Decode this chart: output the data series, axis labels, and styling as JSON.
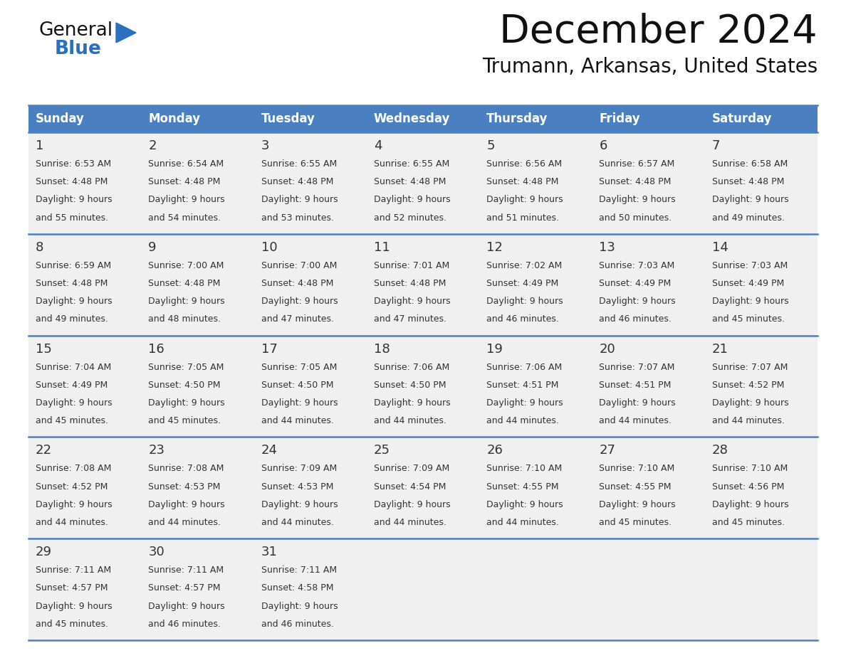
{
  "title": "December 2024",
  "subtitle": "Trumann, Arkansas, United States",
  "days_of_week": [
    "Sunday",
    "Monday",
    "Tuesday",
    "Wednesday",
    "Thursday",
    "Friday",
    "Saturday"
  ],
  "header_bg": "#4a7fc1",
  "header_text": "#FFFFFF",
  "row_bg": "#f0f0f0",
  "row_bg_last": "#f8f8f8",
  "day_num_color": "#333333",
  "text_color": "#333333",
  "line_color": "#4a7fc1",
  "title_color": "#111111",
  "subtitle_color": "#111111",
  "logo_general_color": "#111111",
  "logo_blue_color": "#2a6fc0",
  "weeks": [
    [
      {
        "day": 1,
        "sunrise": "6:53 AM",
        "sunset": "4:48 PM",
        "daylight_hours": 9,
        "daylight_minutes": 55
      },
      {
        "day": 2,
        "sunrise": "6:54 AM",
        "sunset": "4:48 PM",
        "daylight_hours": 9,
        "daylight_minutes": 54
      },
      {
        "day": 3,
        "sunrise": "6:55 AM",
        "sunset": "4:48 PM",
        "daylight_hours": 9,
        "daylight_minutes": 53
      },
      {
        "day": 4,
        "sunrise": "6:55 AM",
        "sunset": "4:48 PM",
        "daylight_hours": 9,
        "daylight_minutes": 52
      },
      {
        "day": 5,
        "sunrise": "6:56 AM",
        "sunset": "4:48 PM",
        "daylight_hours": 9,
        "daylight_minutes": 51
      },
      {
        "day": 6,
        "sunrise": "6:57 AM",
        "sunset": "4:48 PM",
        "daylight_hours": 9,
        "daylight_minutes": 50
      },
      {
        "day": 7,
        "sunrise": "6:58 AM",
        "sunset": "4:48 PM",
        "daylight_hours": 9,
        "daylight_minutes": 49
      }
    ],
    [
      {
        "day": 8,
        "sunrise": "6:59 AM",
        "sunset": "4:48 PM",
        "daylight_hours": 9,
        "daylight_minutes": 49
      },
      {
        "day": 9,
        "sunrise": "7:00 AM",
        "sunset": "4:48 PM",
        "daylight_hours": 9,
        "daylight_minutes": 48
      },
      {
        "day": 10,
        "sunrise": "7:00 AM",
        "sunset": "4:48 PM",
        "daylight_hours": 9,
        "daylight_minutes": 47
      },
      {
        "day": 11,
        "sunrise": "7:01 AM",
        "sunset": "4:48 PM",
        "daylight_hours": 9,
        "daylight_minutes": 47
      },
      {
        "day": 12,
        "sunrise": "7:02 AM",
        "sunset": "4:49 PM",
        "daylight_hours": 9,
        "daylight_minutes": 46
      },
      {
        "day": 13,
        "sunrise": "7:03 AM",
        "sunset": "4:49 PM",
        "daylight_hours": 9,
        "daylight_minutes": 46
      },
      {
        "day": 14,
        "sunrise": "7:03 AM",
        "sunset": "4:49 PM",
        "daylight_hours": 9,
        "daylight_minutes": 45
      }
    ],
    [
      {
        "day": 15,
        "sunrise": "7:04 AM",
        "sunset": "4:49 PM",
        "daylight_hours": 9,
        "daylight_minutes": 45
      },
      {
        "day": 16,
        "sunrise": "7:05 AM",
        "sunset": "4:50 PM",
        "daylight_hours": 9,
        "daylight_minutes": 45
      },
      {
        "day": 17,
        "sunrise": "7:05 AM",
        "sunset": "4:50 PM",
        "daylight_hours": 9,
        "daylight_minutes": 44
      },
      {
        "day": 18,
        "sunrise": "7:06 AM",
        "sunset": "4:50 PM",
        "daylight_hours": 9,
        "daylight_minutes": 44
      },
      {
        "day": 19,
        "sunrise": "7:06 AM",
        "sunset": "4:51 PM",
        "daylight_hours": 9,
        "daylight_minutes": 44
      },
      {
        "day": 20,
        "sunrise": "7:07 AM",
        "sunset": "4:51 PM",
        "daylight_hours": 9,
        "daylight_minutes": 44
      },
      {
        "day": 21,
        "sunrise": "7:07 AM",
        "sunset": "4:52 PM",
        "daylight_hours": 9,
        "daylight_minutes": 44
      }
    ],
    [
      {
        "day": 22,
        "sunrise": "7:08 AM",
        "sunset": "4:52 PM",
        "daylight_hours": 9,
        "daylight_minutes": 44
      },
      {
        "day": 23,
        "sunrise": "7:08 AM",
        "sunset": "4:53 PM",
        "daylight_hours": 9,
        "daylight_minutes": 44
      },
      {
        "day": 24,
        "sunrise": "7:09 AM",
        "sunset": "4:53 PM",
        "daylight_hours": 9,
        "daylight_minutes": 44
      },
      {
        "day": 25,
        "sunrise": "7:09 AM",
        "sunset": "4:54 PM",
        "daylight_hours": 9,
        "daylight_minutes": 44
      },
      {
        "day": 26,
        "sunrise": "7:10 AM",
        "sunset": "4:55 PM",
        "daylight_hours": 9,
        "daylight_minutes": 44
      },
      {
        "day": 27,
        "sunrise": "7:10 AM",
        "sunset": "4:55 PM",
        "daylight_hours": 9,
        "daylight_minutes": 45
      },
      {
        "day": 28,
        "sunrise": "7:10 AM",
        "sunset": "4:56 PM",
        "daylight_hours": 9,
        "daylight_minutes": 45
      }
    ],
    [
      {
        "day": 29,
        "sunrise": "7:11 AM",
        "sunset": "4:57 PM",
        "daylight_hours": 9,
        "daylight_minutes": 45
      },
      {
        "day": 30,
        "sunrise": "7:11 AM",
        "sunset": "4:57 PM",
        "daylight_hours": 9,
        "daylight_minutes": 46
      },
      {
        "day": 31,
        "sunrise": "7:11 AM",
        "sunset": "4:58 PM",
        "daylight_hours": 9,
        "daylight_minutes": 46
      },
      null,
      null,
      null,
      null
    ]
  ]
}
